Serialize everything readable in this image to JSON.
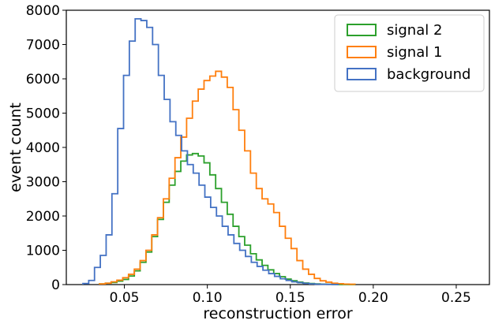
{
  "chart_data": {
    "type": "step-histogram",
    "xlabel": "reconstruction error",
    "ylabel": "event count",
    "xlim": [
      0.015,
      0.27
    ],
    "ylim": [
      0,
      8000
    ],
    "x_ticks": [
      0.05,
      0.1,
      0.15,
      0.2,
      0.25
    ],
    "x_tick_labels": [
      "0.05",
      "0.10",
      "0.15",
      "0.20",
      "0.25"
    ],
    "y_ticks": [
      0,
      1000,
      2000,
      3000,
      4000,
      5000,
      6000,
      7000,
      8000
    ],
    "y_tick_labels": [
      "0",
      "1000",
      "2000",
      "3000",
      "4000",
      "5000",
      "6000",
      "7000",
      "8000"
    ],
    "grid": false,
    "legend_position": "top-right",
    "series": [
      {
        "name": "signal 2",
        "color": "#2ca02c",
        "bin_start": 0.035,
        "bin_width": 0.0035,
        "counts": [
          20,
          40,
          60,
          100,
          150,
          250,
          400,
          650,
          950,
          1400,
          1900,
          2400,
          2900,
          3300,
          3600,
          3780,
          3820,
          3750,
          3550,
          3200,
          2800,
          2400,
          2050,
          1700,
          1400,
          1150,
          900,
          720,
          560,
          430,
          320,
          230,
          160,
          110,
          70,
          45,
          30,
          20,
          12,
          8,
          5,
          3,
          2,
          1
        ]
      },
      {
        "name": "signal 1",
        "color": "#ff7f0e",
        "bin_start": 0.035,
        "bin_width": 0.0035,
        "counts": [
          20,
          40,
          80,
          130,
          200,
          300,
          450,
          700,
          1000,
          1450,
          1950,
          2500,
          3100,
          3700,
          4300,
          4850,
          5350,
          5700,
          5950,
          6080,
          6220,
          6050,
          5750,
          5100,
          4500,
          3900,
          3250,
          2800,
          2500,
          2350,
          2100,
          1700,
          1350,
          1050,
          700,
          450,
          300,
          180,
          110,
          70,
          40,
          25,
          15,
          10
        ]
      },
      {
        "name": "background",
        "color": "#4472c4",
        "bin_start": 0.025,
        "bin_width": 0.0035,
        "counts": [
          30,
          120,
          500,
          850,
          1450,
          2650,
          4550,
          6100,
          7100,
          7750,
          7700,
          7500,
          7000,
          6100,
          5400,
          4750,
          4350,
          3900,
          3500,
          3250,
          2900,
          2550,
          2250,
          2000,
          1700,
          1450,
          1200,
          1000,
          820,
          650,
          530,
          420,
          320,
          240,
          170,
          120,
          80,
          55,
          35,
          20,
          12,
          8,
          5,
          3
        ]
      }
    ]
  }
}
